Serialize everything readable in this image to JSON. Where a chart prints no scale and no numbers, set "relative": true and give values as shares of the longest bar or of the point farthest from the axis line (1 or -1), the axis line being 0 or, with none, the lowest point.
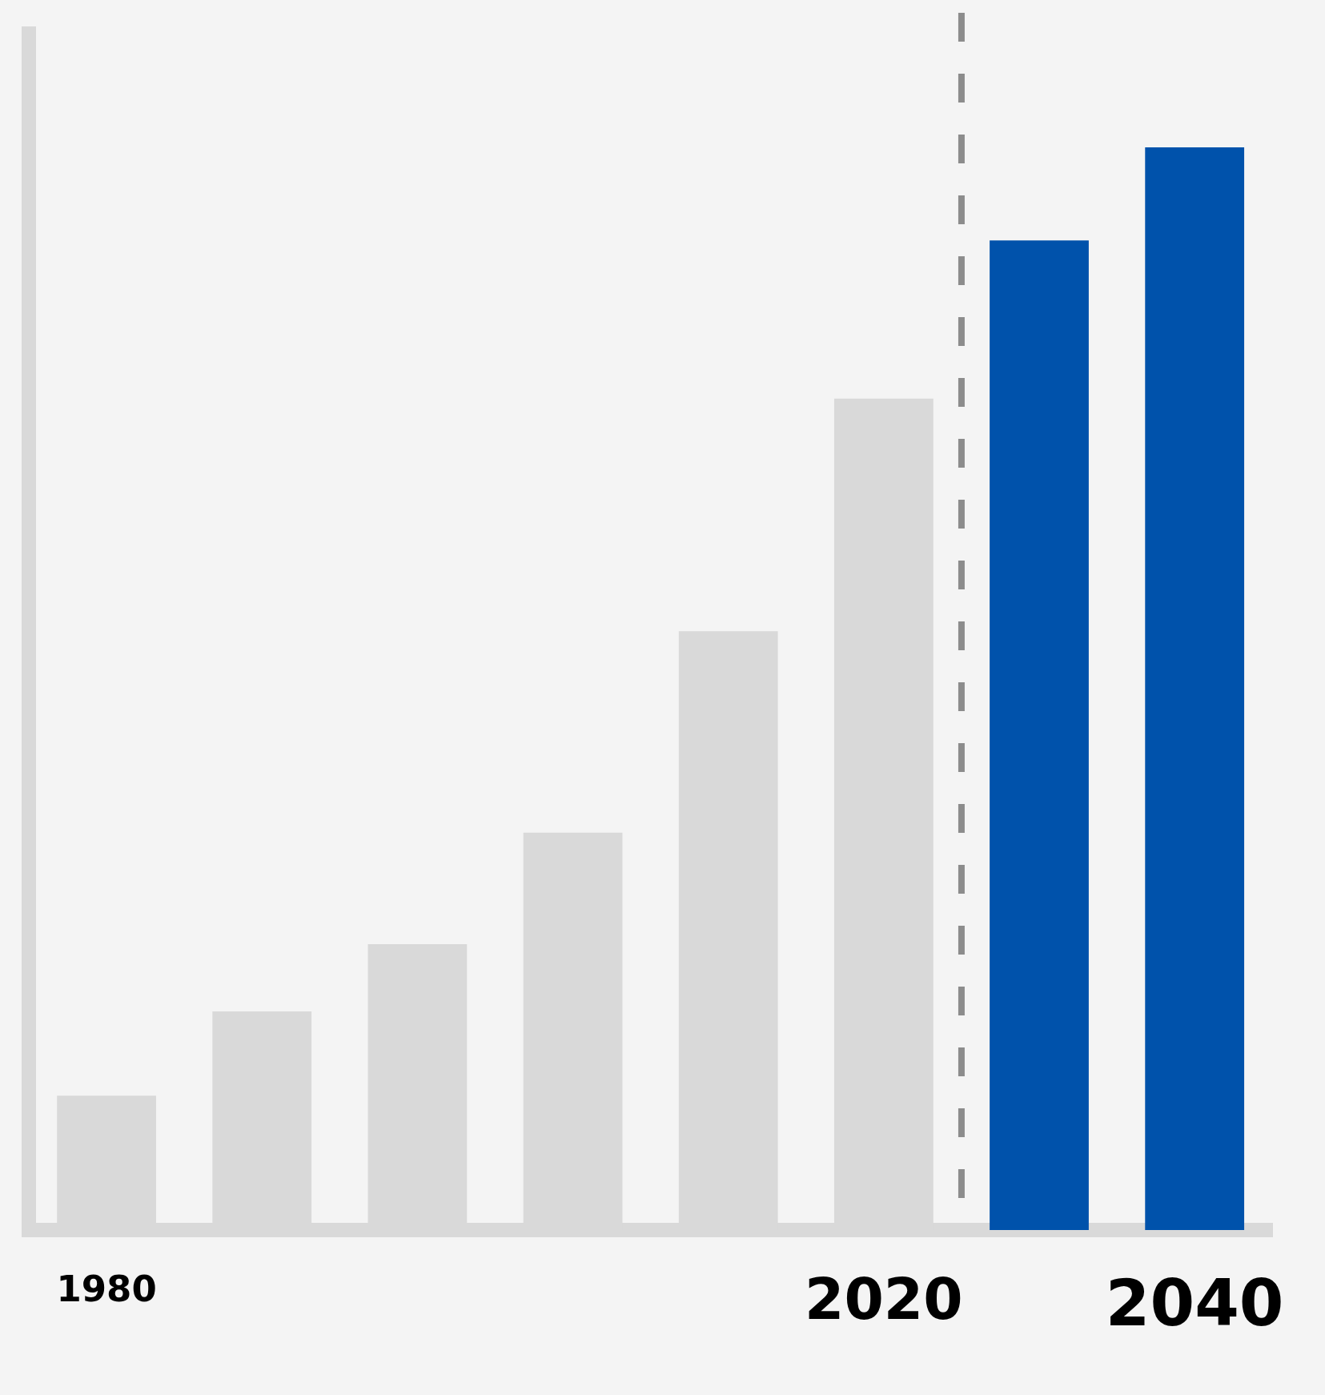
{
  "chart_data": {
    "type": "bar",
    "relative": true,
    "categories": [
      "1980",
      null,
      null,
      null,
      null,
      "2020",
      null,
      "2040"
    ],
    "values": [
      0.124,
      0.202,
      0.264,
      0.367,
      0.553,
      0.768,
      0.914,
      1
    ],
    "colors": [
      "#d9d9d9",
      "#d9d9d9",
      "#d9d9d9",
      "#d9d9d9",
      "#d9d9d9",
      "#d9d9d9",
      "#0052ab",
      "#0052ab"
    ],
    "ref_lines": [
      {
        "axis": "x",
        "value": "2020",
        "color": "#8c8c8c",
        "line_style": "dashed"
      }
    ],
    "grid": false,
    "legend": false
  }
}
